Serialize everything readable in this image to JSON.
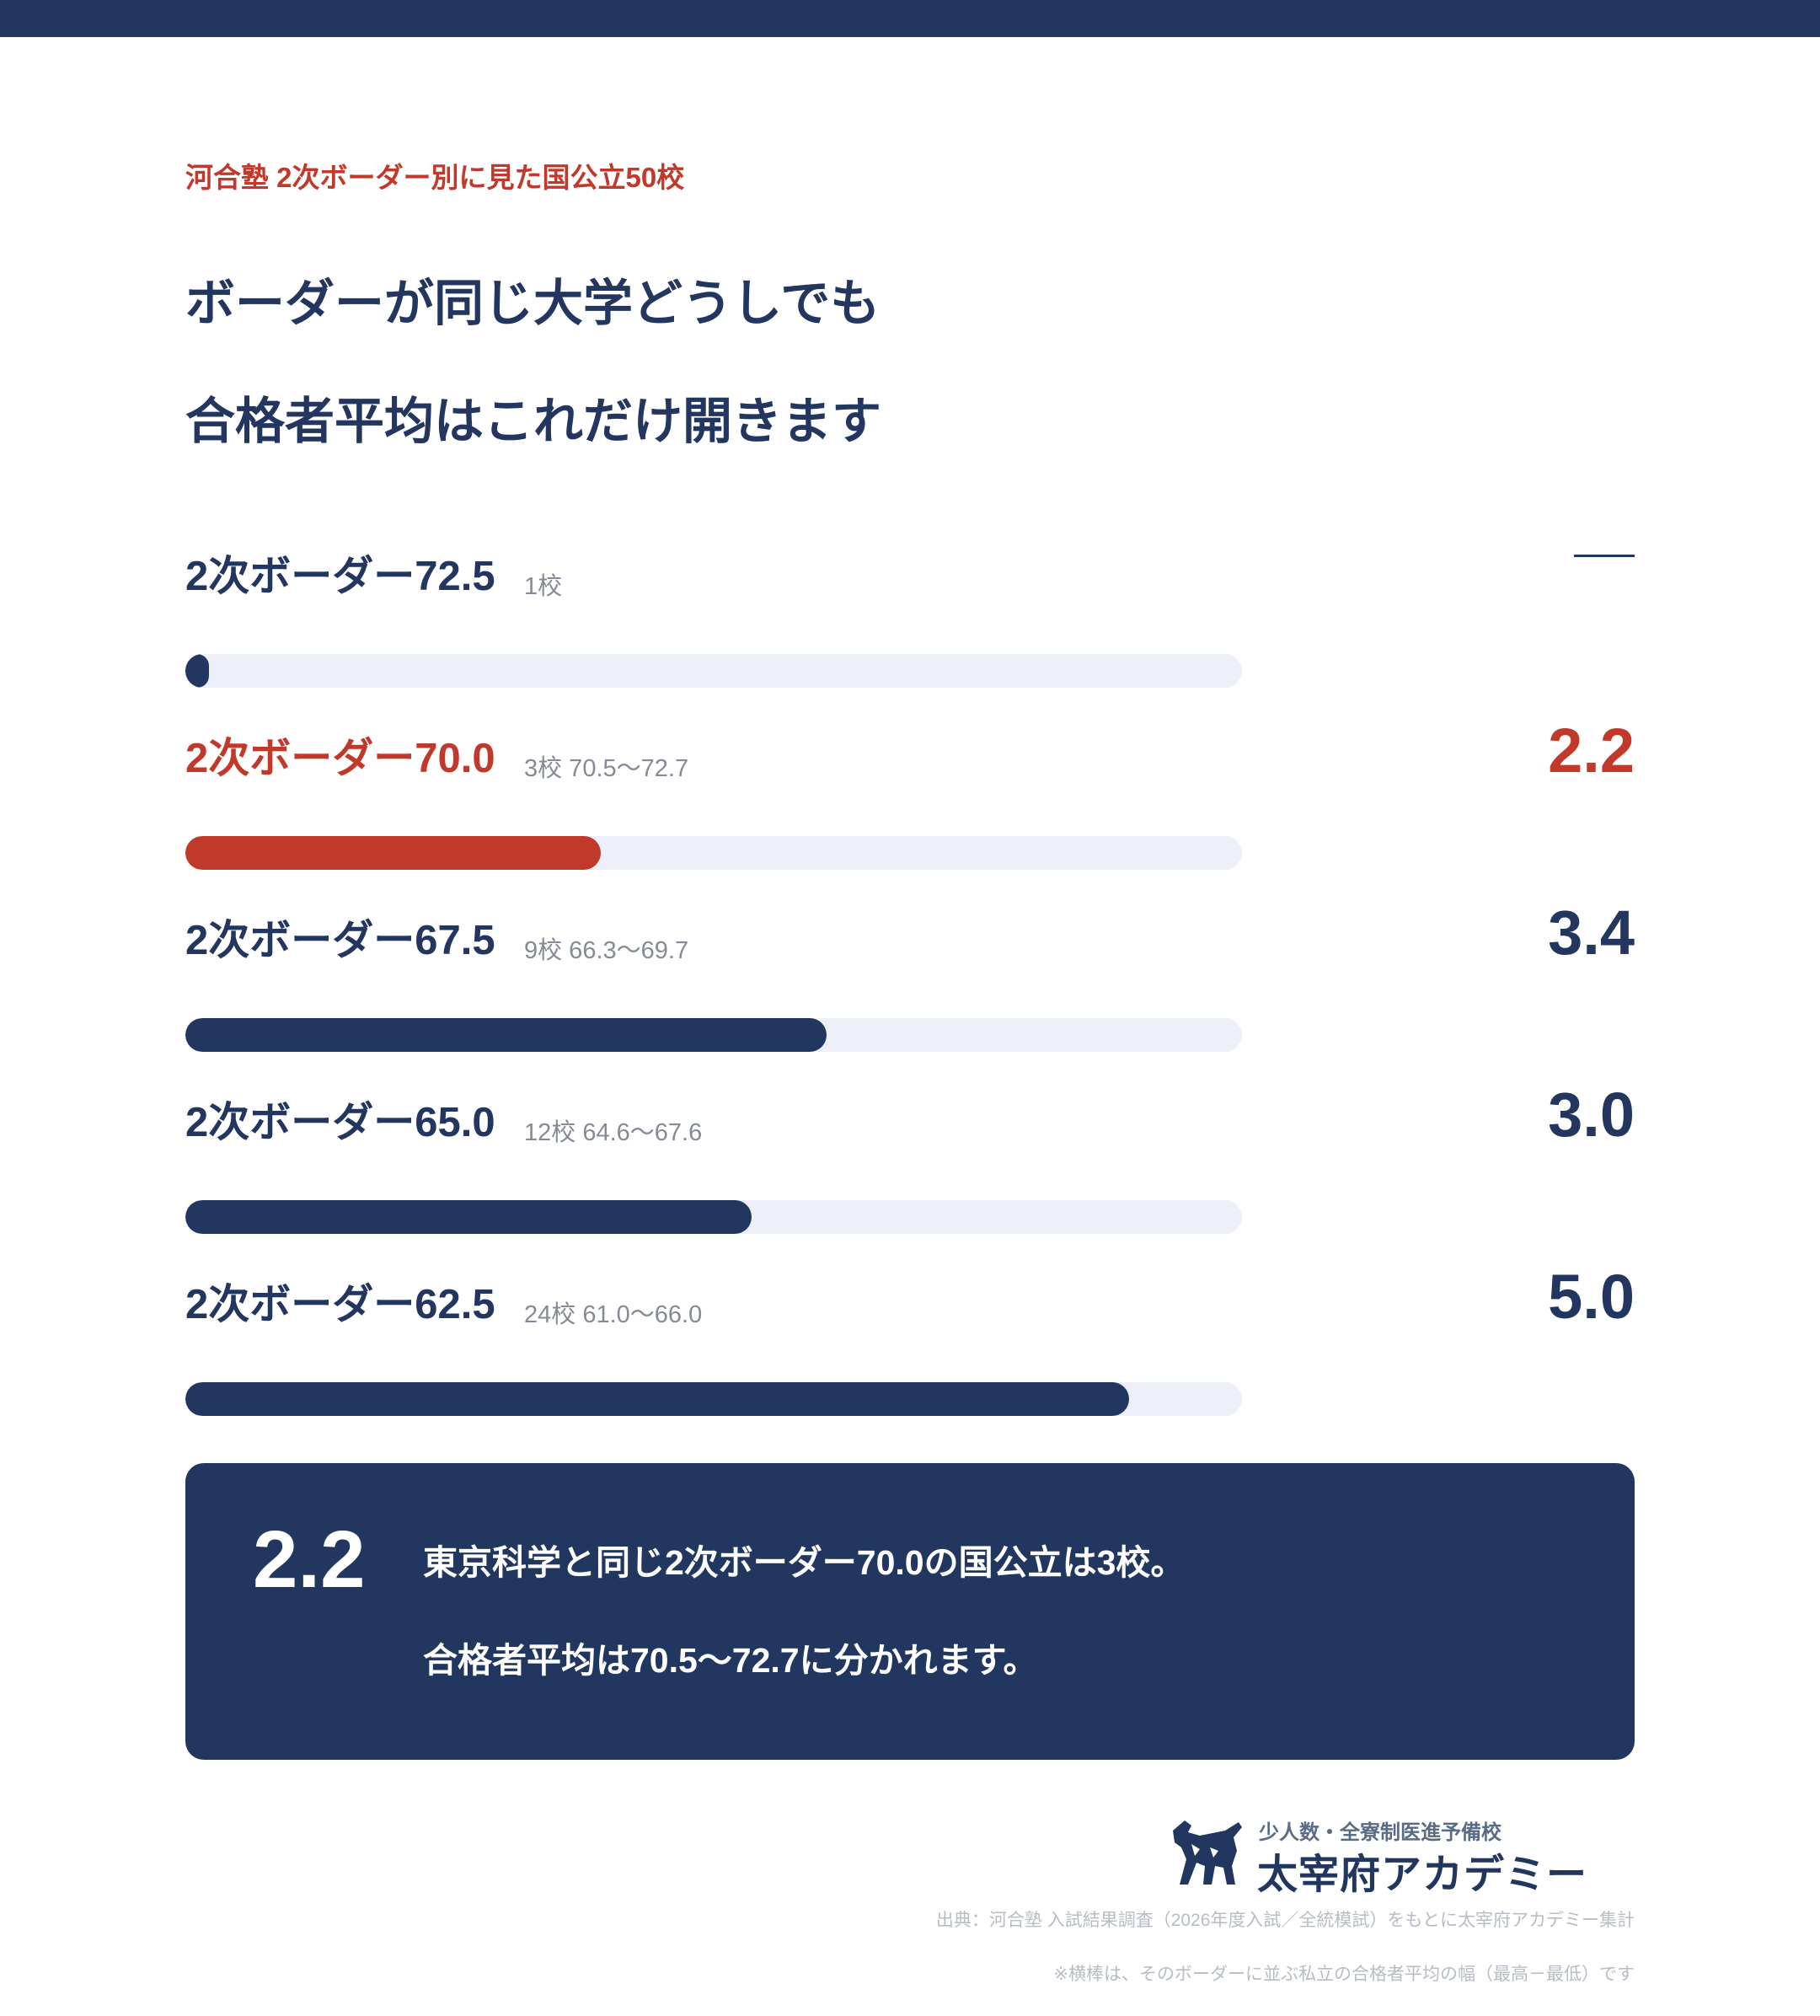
{
  "header": {
    "kicker": "河合塾 2次ボーダー別に見た国公立50校",
    "headline_line1": "ボーダーが同じ大学どうしでも",
    "headline_line2": "合格者平均はこれだけ開きます"
  },
  "chart_data": {
    "type": "bar",
    "orientation": "horizontal",
    "categories": [
      "2次ボーダー72.5",
      "2次ボーダー70.0",
      "2次ボーダー67.5",
      "2次ボーダー65.0",
      "2次ボーダー62.5"
    ],
    "values": [
      0.1,
      2.2,
      3.4,
      3.0,
      5.0
    ],
    "value_labels": [
      "—",
      "2.2",
      "3.4",
      "3.0",
      "5.0"
    ],
    "meta": [
      "1校",
      "3校 70.5〜72.7",
      "9校 66.3〜69.7",
      "12校 64.6〜67.6",
      "24校 61.0〜66.0"
    ],
    "highlight_index": 1,
    "xlim": [
      0,
      5.6
    ],
    "colors": {
      "bar": "#22375f",
      "highlight": "#c0392b",
      "track": "#edf0f8"
    }
  },
  "callout": {
    "value": "2.2",
    "line1": "東京科学と同じ2次ボーダー70.0の国公立は3校。",
    "line2": "合格者平均は70.5〜72.7に分かれます。"
  },
  "logo": {
    "tagline": "少人数・全寮制医進予備校",
    "name": "太宰府アカデミー"
  },
  "footer": {
    "source": "出典：河合塾 入試結果調査（2026年度入試／全統模試）をもとに太宰府アカデミー集計",
    "note": "※横棒は、そのボーダーに並ぶ私立の合格者平均の幅（最高－最低）です"
  }
}
